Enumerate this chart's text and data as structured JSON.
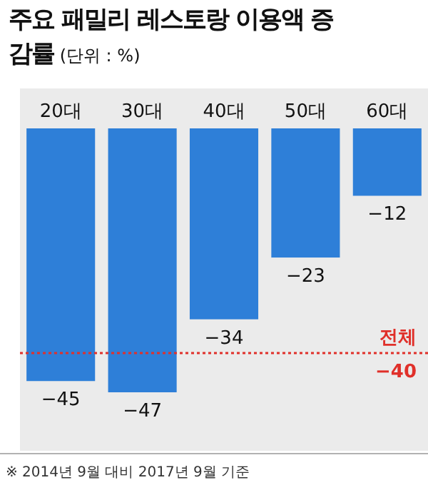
{
  "chart_data": {
    "type": "bar",
    "title": "주요 패밀리 레스토랑 이용액 증감률",
    "subtitle": "(단위 : %)",
    "categories": [
      "20대",
      "30대",
      "40대",
      "50대",
      "60대"
    ],
    "values": [
      -45,
      -47,
      -34,
      -23,
      -12
    ],
    "color": "#2e7fd8",
    "data_labels": true,
    "ref_lines": [
      {
        "axis": "y",
        "value": -40,
        "label": "전체",
        "color": "#e0302a",
        "line_style": "dotted"
      }
    ],
    "annotations": [
      {
        "text": "−40",
        "y": -40
      },
      "※ 2014년 9월 대비 2017년 9월 기준"
    ]
  }
}
